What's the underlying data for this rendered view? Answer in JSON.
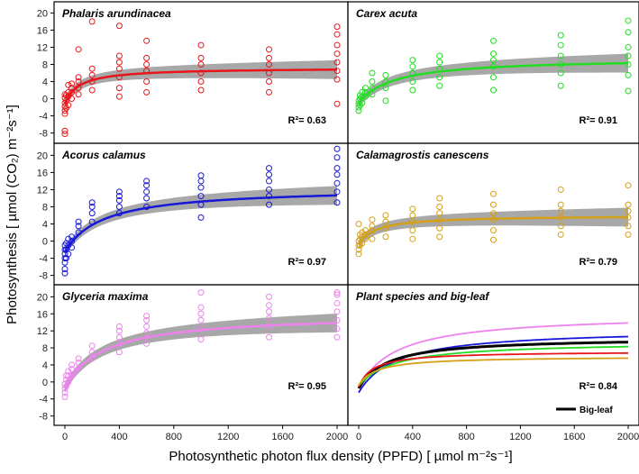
{
  "chart_data": {
    "type": "scatter",
    "xlabel": "Photosynthetic photon flux density (PPFD) [ µmol m⁻²s⁻¹]",
    "ylabel": "Photosynthesis [ µmol (CO₂) m⁻²s⁻¹]",
    "xlim": [
      0,
      2000
    ],
    "x_ticks": [
      0,
      400,
      800,
      1200,
      1600,
      2000
    ],
    "ppfd_levels": [
      0,
      10,
      25,
      50,
      100,
      200,
      400,
      600,
      1000,
      1500,
      2000
    ],
    "panels": [
      {
        "title": "Phalaris arundinacea",
        "color": "#e8161b",
        "r2": "R²= 0.63",
        "ylim": [
          -9,
          21
        ],
        "y_ticks": [
          -8,
          -4,
          0,
          4,
          8,
          12,
          16,
          20
        ],
        "fit": {
          "amax": 8.4,
          "k": 105,
          "rd": 1.2
        },
        "points": [
          [
            0,
            -7.5
          ],
          [
            0,
            -8.2
          ],
          [
            0,
            -3.5
          ],
          [
            0,
            -2.8
          ],
          [
            0,
            -1.8
          ],
          [
            0,
            -1.0
          ],
          [
            0,
            0.2
          ],
          [
            0,
            1.0
          ],
          [
            10,
            -2.2
          ],
          [
            10,
            -0.5
          ],
          [
            10,
            0.8
          ],
          [
            25,
            -1.5
          ],
          [
            25,
            0.5
          ],
          [
            25,
            1.5
          ],
          [
            25,
            3.2
          ],
          [
            50,
            0.0
          ],
          [
            50,
            1.5
          ],
          [
            50,
            2.5
          ],
          [
            50,
            3.5
          ],
          [
            100,
            1.0
          ],
          [
            100,
            2.5
          ],
          [
            100,
            4.0
          ],
          [
            100,
            5.0
          ],
          [
            100,
            11.5
          ],
          [
            200,
            2.0
          ],
          [
            200,
            4.0
          ],
          [
            200,
            5.5
          ],
          [
            200,
            7.0
          ],
          [
            200,
            18.0
          ],
          [
            400,
            0.5
          ],
          [
            400,
            2.5
          ],
          [
            400,
            5.0
          ],
          [
            400,
            7.0
          ],
          [
            400,
            8.5
          ],
          [
            400,
            10.0
          ],
          [
            400,
            17.0
          ],
          [
            600,
            1.5
          ],
          [
            600,
            4.0
          ],
          [
            600,
            6.5
          ],
          [
            600,
            8.0
          ],
          [
            600,
            9.5
          ],
          [
            600,
            13.5
          ],
          [
            1000,
            2.0
          ],
          [
            1000,
            4.0
          ],
          [
            1000,
            6.0
          ],
          [
            1000,
            8.0
          ],
          [
            1000,
            9.5
          ],
          [
            1000,
            12.5
          ],
          [
            1500,
            1.5
          ],
          [
            1500,
            4.0
          ],
          [
            1500,
            6.0
          ],
          [
            1500,
            8.0
          ],
          [
            1500,
            9.5
          ],
          [
            1500,
            11.5
          ],
          [
            2000,
            -1.2
          ],
          [
            2000,
            4.5
          ],
          [
            2000,
            6.5
          ],
          [
            2000,
            8.5
          ],
          [
            2000,
            10.5
          ],
          [
            2000,
            12.5
          ],
          [
            2000,
            15.0
          ],
          [
            2000,
            16.8
          ]
        ]
      },
      {
        "title": "Carex acuta",
        "color": "#22dd22",
        "r2": "R²= 0.91",
        "ylim": [
          -9,
          21
        ],
        "y_ticks": [
          -8,
          -4,
          0,
          4,
          8,
          12,
          16,
          20
        ],
        "fit": {
          "amax": 10.5,
          "k": 260,
          "rd": 1.0
        },
        "points": [
          [
            0,
            -2.8
          ],
          [
            0,
            -2.0
          ],
          [
            0,
            -1.2
          ],
          [
            0,
            -0.5
          ],
          [
            10,
            -1.5
          ],
          [
            10,
            0.0
          ],
          [
            10,
            0.8
          ],
          [
            25,
            -1.0
          ],
          [
            25,
            0.5
          ],
          [
            25,
            1.5
          ],
          [
            50,
            0.5
          ],
          [
            50,
            1.5
          ],
          [
            50,
            2.5
          ],
          [
            100,
            1.0
          ],
          [
            100,
            2.5
          ],
          [
            100,
            4.0
          ],
          [
            100,
            6.0
          ],
          [
            200,
            -0.5
          ],
          [
            200,
            2.5
          ],
          [
            200,
            4.0
          ],
          [
            200,
            5.5
          ],
          [
            400,
            2.0
          ],
          [
            400,
            4.0
          ],
          [
            400,
            6.0
          ],
          [
            400,
            7.5
          ],
          [
            400,
            9.0
          ],
          [
            600,
            3.0
          ],
          [
            600,
            5.0
          ],
          [
            600,
            7.0
          ],
          [
            600,
            8.5
          ],
          [
            600,
            10.0
          ],
          [
            1000,
            2.0
          ],
          [
            1000,
            5.0
          ],
          [
            1000,
            7.5
          ],
          [
            1000,
            9.0
          ],
          [
            1000,
            10.5
          ],
          [
            1000,
            13.5
          ],
          [
            1500,
            3.0
          ],
          [
            1500,
            6.0
          ],
          [
            1500,
            8.0
          ],
          [
            1500,
            10.0
          ],
          [
            1500,
            12.5
          ],
          [
            1500,
            14.8
          ],
          [
            2000,
            1.8
          ],
          [
            2000,
            5.5
          ],
          [
            2000,
            8.0
          ],
          [
            2000,
            10.0
          ],
          [
            2000,
            12.0
          ],
          [
            2000,
            15.5
          ],
          [
            2000,
            18.2
          ]
        ]
      },
      {
        "title": "Acorus calamus",
        "color": "#1717d8",
        "r2": "R²= 0.97",
        "ylim": [
          -9,
          21
        ],
        "y_ticks": [
          -8,
          -4,
          0,
          4,
          8,
          12,
          16,
          20
        ],
        "fit": {
          "amax": 15.0,
          "k": 280,
          "rd": 2.5
        },
        "points": [
          [
            0,
            -7.5
          ],
          [
            0,
            -6.5
          ],
          [
            0,
            -5.0
          ],
          [
            0,
            -4.0
          ],
          [
            0,
            -3.0
          ],
          [
            0,
            -2.0
          ],
          [
            0,
            -1.0
          ],
          [
            10,
            -4.0
          ],
          [
            10,
            -2.0
          ],
          [
            10,
            -0.5
          ],
          [
            25,
            -3.0
          ],
          [
            25,
            -1.0
          ],
          [
            25,
            0.5
          ],
          [
            50,
            -1.5
          ],
          [
            50,
            0.0
          ],
          [
            50,
            1.0
          ],
          [
            100,
            2.0
          ],
          [
            100,
            3.5
          ],
          [
            100,
            4.5
          ],
          [
            200,
            4.5
          ],
          [
            200,
            6.5
          ],
          [
            200,
            8.0
          ],
          [
            200,
            9.0
          ],
          [
            400,
            6.5
          ],
          [
            400,
            8.0
          ],
          [
            400,
            9.5
          ],
          [
            400,
            10.5
          ],
          [
            400,
            11.5
          ],
          [
            600,
            8.0
          ],
          [
            600,
            10.0
          ],
          [
            600,
            11.5
          ],
          [
            600,
            13.0
          ],
          [
            600,
            14.0
          ],
          [
            1000,
            5.5
          ],
          [
            1000,
            8.5
          ],
          [
            1000,
            10.5
          ],
          [
            1000,
            12.5
          ],
          [
            1000,
            14.0
          ],
          [
            1000,
            15.3
          ],
          [
            1500,
            8.5
          ],
          [
            1500,
            10.5
          ],
          [
            1500,
            12.0
          ],
          [
            1500,
            14.0
          ],
          [
            1500,
            15.5
          ],
          [
            1500,
            17.0
          ],
          [
            2000,
            9.0
          ],
          [
            2000,
            11.5
          ],
          [
            2000,
            13.5
          ],
          [
            2000,
            15.5
          ],
          [
            2000,
            17.0
          ],
          [
            2000,
            19.5
          ],
          [
            2000,
            21.5
          ]
        ]
      },
      {
        "title": "Calamagrostis canescens",
        "color": "#d4a017",
        "r2": "R²= 0.79",
        "ylim": [
          -9,
          21
        ],
        "y_ticks": [
          -8,
          -4,
          0,
          4,
          8,
          12,
          16,
          20
        ],
        "fit": {
          "amax": 6.8,
          "k": 130,
          "rd": 0.8
        },
        "points": [
          [
            0,
            -3.0
          ],
          [
            0,
            -2.0
          ],
          [
            0,
            -1.0
          ],
          [
            0,
            0.0
          ],
          [
            0,
            4.0
          ],
          [
            10,
            -1.0
          ],
          [
            10,
            0.5
          ],
          [
            10,
            1.5
          ],
          [
            25,
            -0.5
          ],
          [
            25,
            1.0
          ],
          [
            25,
            2.0
          ],
          [
            50,
            0.5
          ],
          [
            50,
            1.5
          ],
          [
            50,
            2.5
          ],
          [
            100,
            0.5
          ],
          [
            100,
            2.5
          ],
          [
            100,
            3.5
          ],
          [
            100,
            5.0
          ],
          [
            200,
            1.0
          ],
          [
            200,
            3.0
          ],
          [
            200,
            4.5
          ],
          [
            200,
            6.0
          ],
          [
            400,
            0.5
          ],
          [
            400,
            2.5
          ],
          [
            400,
            4.5
          ],
          [
            400,
            6.0
          ],
          [
            400,
            7.5
          ],
          [
            600,
            1.0
          ],
          [
            600,
            3.0
          ],
          [
            600,
            5.0
          ],
          [
            600,
            6.5
          ],
          [
            600,
            8.0
          ],
          [
            600,
            10.0
          ],
          [
            1000,
            0.3
          ],
          [
            1000,
            2.5
          ],
          [
            1000,
            5.0
          ],
          [
            1000,
            6.5
          ],
          [
            1000,
            8.5
          ],
          [
            1000,
            11.0
          ],
          [
            1500,
            1.5
          ],
          [
            1500,
            3.5
          ],
          [
            1500,
            5.5
          ],
          [
            1500,
            7.0
          ],
          [
            1500,
            8.5
          ],
          [
            1500,
            12.0
          ],
          [
            2000,
            1.5
          ],
          [
            2000,
            3.5
          ],
          [
            2000,
            5.5
          ],
          [
            2000,
            7.0
          ],
          [
            2000,
            8.5
          ],
          [
            2000,
            13.0
          ]
        ]
      },
      {
        "title": "Glyceria maxima",
        "color": "#ee82ee",
        "r2": "R²= 0.95",
        "ylim": [
          -9,
          21
        ],
        "y_ticks": [
          -8,
          -4,
          0,
          4,
          8,
          12,
          16,
          20
        ],
        "fit": {
          "amax": 17.5,
          "k": 280,
          "rd": 1.5
        },
        "points": [
          [
            0,
            -3.5
          ],
          [
            0,
            -2.5
          ],
          [
            0,
            -1.5
          ],
          [
            0,
            -0.5
          ],
          [
            10,
            -1.0
          ],
          [
            10,
            0.5
          ],
          [
            10,
            1.5
          ],
          [
            25,
            0.0
          ],
          [
            25,
            1.5
          ],
          [
            25,
            2.5
          ],
          [
            50,
            1.5
          ],
          [
            50,
            3.0
          ],
          [
            50,
            4.0
          ],
          [
            100,
            3.0
          ],
          [
            100,
            4.5
          ],
          [
            100,
            5.5
          ],
          [
            200,
            5.5
          ],
          [
            200,
            7.0
          ],
          [
            200,
            8.5
          ],
          [
            400,
            7.0
          ],
          [
            400,
            9.0
          ],
          [
            400,
            10.5
          ],
          [
            400,
            12.0
          ],
          [
            400,
            13.0
          ],
          [
            600,
            9.0
          ],
          [
            600,
            11.5
          ],
          [
            600,
            13.0
          ],
          [
            600,
            14.5
          ],
          [
            600,
            15.5
          ],
          [
            1000,
            10.0
          ],
          [
            1000,
            12.5
          ],
          [
            1000,
            14.5
          ],
          [
            1000,
            16.0
          ],
          [
            1000,
            17.5
          ],
          [
            1000,
            21.0
          ],
          [
            1500,
            10.5
          ],
          [
            1500,
            13.0
          ],
          [
            1500,
            15.0
          ],
          [
            1500,
            16.5
          ],
          [
            1500,
            18.0
          ],
          [
            1500,
            20.0
          ],
          [
            2000,
            10.5
          ],
          [
            2000,
            12.5
          ],
          [
            2000,
            14.5
          ],
          [
            2000,
            16.5
          ],
          [
            2000,
            18.5
          ],
          [
            2000,
            20.5
          ],
          [
            2000,
            21.0
          ]
        ]
      },
      {
        "title": "Plant species and big-leaf",
        "r2": "R²= 0.84",
        "ylim": [
          -9,
          21
        ],
        "y_ticks": [
          -8,
          -4,
          0,
          4,
          8,
          12,
          16,
          20
        ],
        "legend": "Big-leaf",
        "series": [
          {
            "name": "Glyceria maxima",
            "color": "#ee82ee",
            "amax": 17.5,
            "k": 280,
            "rd": 1.5
          },
          {
            "name": "Acorus calamus",
            "color": "#1717d8",
            "amax": 15.0,
            "k": 280,
            "rd": 2.5
          },
          {
            "name": "Big-leaf",
            "color": "#000000",
            "amax": 12.0,
            "k": 210,
            "rd": 1.5
          },
          {
            "name": "Carex acuta",
            "color": "#22dd22",
            "amax": 10.5,
            "k": 260,
            "rd": 1.0
          },
          {
            "name": "Phalaris arundinacea",
            "color": "#e8161b",
            "amax": 8.4,
            "k": 105,
            "rd": 1.2
          },
          {
            "name": "Calamagrostis canescens",
            "color": "#d4a017",
            "amax": 6.8,
            "k": 130,
            "rd": 0.8
          }
        ]
      }
    ]
  }
}
